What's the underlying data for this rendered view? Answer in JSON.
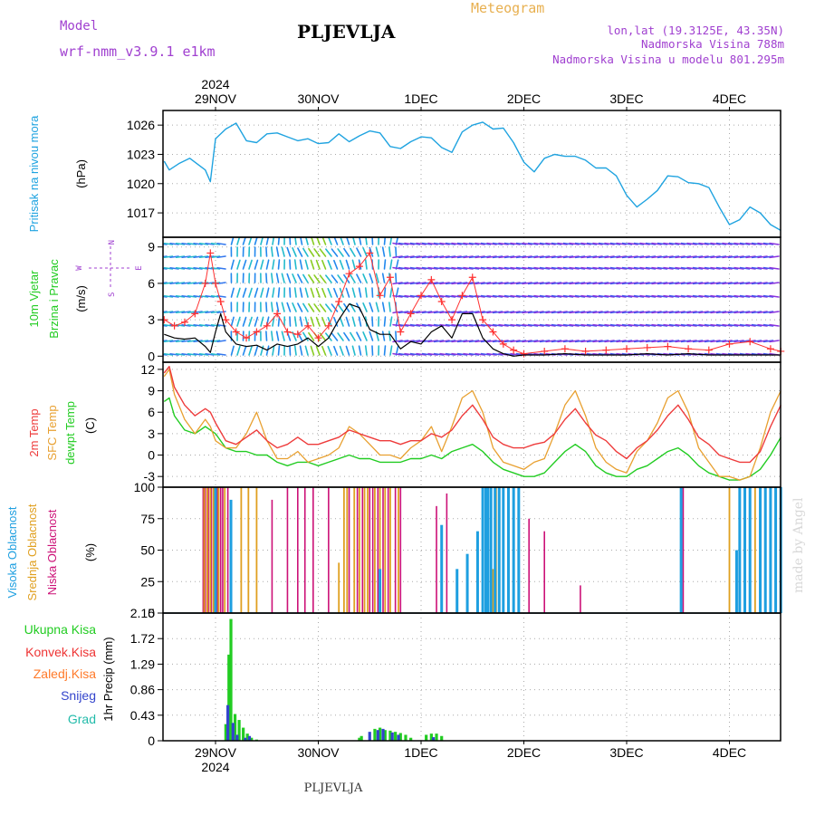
{
  "header": {
    "model_label": "Model",
    "model_name": "wrf-nmm_v3.9.1 e1km",
    "station": "PLJEVLJA",
    "product": "Meteogram",
    "coords": "lon,lat (19.3125E, 43.35N)",
    "elevation": "Nadmorska Visina 788m",
    "model_elevation": "Nadmorska Visina u modelu 801.295m",
    "year": "2024",
    "footer_station": "PLJEVLJA",
    "credit": "made by Angel"
  },
  "colors": {
    "pressure": "#1fa3e0",
    "wind_speed": "#000000",
    "wind_gust": "#ff3030",
    "t2m": "#ee3b3b",
    "tsfc": "#e8a030",
    "dewpt": "#22cc22",
    "cloud_high": "#1e9fe0",
    "cloud_mid": "#e0a020",
    "cloud_low": "#cc1177",
    "precip_total": "#22cc22",
    "precip_conv": "#ee3333",
    "precip_freezing": "#ff7a2a",
    "precip_snow": "#3344cc",
    "precip_graupel": "#22bbaa",
    "title_purple": "#a040d0",
    "title_orange": "#e8b050"
  },
  "chart_data": [
    {
      "type": "line",
      "panel": "pressure",
      "ylabel": "Pritisak na nivou mora",
      "unit": "(hPa)",
      "ylim": [
        1014.5,
        1027.5
      ],
      "yticks": [
        1017,
        1020,
        1023,
        1026
      ],
      "grid": true,
      "x_days": [
        "29NOV",
        "30NOV",
        "1DEC",
        "2DEC",
        "3DEC",
        "4DEC"
      ],
      "x": [
        -0.5,
        -0.45,
        -0.35,
        -0.25,
        -0.1,
        -0.05,
        0.0,
        0.1,
        0.2,
        0.3,
        0.4,
        0.5,
        0.6,
        0.7,
        0.8,
        0.9,
        1.0,
        1.1,
        1.2,
        1.3,
        1.4,
        1.5,
        1.6,
        1.7,
        1.8,
        1.9,
        2.0,
        2.1,
        2.2,
        2.3,
        2.4,
        2.5,
        2.6,
        2.7,
        2.8,
        2.9,
        3.0,
        3.1,
        3.2,
        3.3,
        3.4,
        3.5,
        3.6,
        3.7,
        3.8,
        3.9,
        4.0,
        4.1,
        4.2,
        4.3,
        4.4,
        4.5,
        4.6,
        4.7,
        4.8,
        4.9,
        5.0,
        5.1,
        5.2,
        5.3,
        5.4,
        5.5
      ],
      "values": [
        1022.3,
        1021.4,
        1022.1,
        1022.6,
        1021.4,
        1020.2,
        1024.6,
        1025.6,
        1026.2,
        1024.4,
        1024.2,
        1025.1,
        1025.2,
        1024.8,
        1024.4,
        1024.6,
        1024.1,
        1024.2,
        1025.1,
        1024.3,
        1024.9,
        1025.4,
        1025.2,
        1023.8,
        1023.6,
        1024.3,
        1024.8,
        1024.7,
        1023.7,
        1023.2,
        1025.3,
        1026.0,
        1026.3,
        1025.6,
        1025.7,
        1024.2,
        1022.2,
        1021.2,
        1022.6,
        1023.0,
        1022.8,
        1022.8,
        1022.4,
        1021.6,
        1021.6,
        1020.8,
        1018.8,
        1017.6,
        1018.4,
        1019.3,
        1020.8,
        1020.7,
        1020.1,
        1020.0,
        1019.6,
        1017.6,
        1015.8,
        1016.3,
        1017.6,
        1017.0,
        1015.8,
        1015.2
      ]
    },
    {
      "type": "line",
      "panel": "wind",
      "ylabel": "10m Vjetar",
      "ylabel2": "Brzina i Pravac",
      "unit": "(m/s)",
      "compass": {
        "n": "N",
        "w": "W",
        "e": "E",
        "s": "S"
      },
      "ylim": [
        -0.5,
        9.8
      ],
      "yticks": [
        0,
        3,
        6,
        9
      ],
      "grid": true,
      "x": [
        -0.5,
        -0.4,
        -0.3,
        -0.2,
        -0.1,
        -0.05,
        0.0,
        0.05,
        0.1,
        0.2,
        0.3,
        0.4,
        0.5,
        0.6,
        0.7,
        0.8,
        0.9,
        1.0,
        1.1,
        1.2,
        1.3,
        1.4,
        1.5,
        1.6,
        1.7,
        1.8,
        1.9,
        2.0,
        2.1,
        2.2,
        2.3,
        2.4,
        2.5,
        2.6,
        2.7,
        2.8,
        2.9,
        3.0,
        3.2,
        3.4,
        3.6,
        3.8,
        4.0,
        4.2,
        4.4,
        4.6,
        4.8,
        5.0,
        5.2,
        5.4,
        5.5
      ],
      "series": [
        {
          "name": "speed",
          "values": [
            1.8,
            1.5,
            1.4,
            1.5,
            0.8,
            0.3,
            2.0,
            3.5,
            2.0,
            1.0,
            0.8,
            0.9,
            0.5,
            1.0,
            0.8,
            1.0,
            1.5,
            0.8,
            1.5,
            3.0,
            4.3,
            4.0,
            2.2,
            1.8,
            1.8,
            0.6,
            1.2,
            1.0,
            2.0,
            2.5,
            1.5,
            3.5,
            3.5,
            1.5,
            0.6,
            0.2,
            0.0,
            0.1,
            0.1,
            0.2,
            0.1,
            0.1,
            0.1,
            0.2,
            0.1,
            0.2,
            0.1,
            0.1,
            0.1,
            0.1,
            0.1
          ]
        },
        {
          "name": "gust",
          "values": [
            3.0,
            2.5,
            2.8,
            3.5,
            6.0,
            8.5,
            6.0,
            4.5,
            3.0,
            2.0,
            1.5,
            2.0,
            2.5,
            3.5,
            2.0,
            1.8,
            2.5,
            1.5,
            2.5,
            4.5,
            6.8,
            7.4,
            8.5,
            5.0,
            6.5,
            2.0,
            3.5,
            5.0,
            6.3,
            4.5,
            3.0,
            5.0,
            6.5,
            3.0,
            2.0,
            1.0,
            0.5,
            0.2,
            0.4,
            0.6,
            0.4,
            0.5,
            0.6,
            0.7,
            0.8,
            0.6,
            0.5,
            1.0,
            1.2,
            0.6,
            0.4
          ]
        }
      ]
    },
    {
      "type": "line",
      "panel": "temperature",
      "ylabels": [
        "2m Temp",
        "SFC Temp",
        "dewpt Temp"
      ],
      "unit": "(C)",
      "ylim": [
        -4.5,
        13
      ],
      "yticks": [
        -3,
        0,
        3,
        6,
        9,
        12
      ],
      "grid": true,
      "x": [
        -0.5,
        -0.45,
        -0.4,
        -0.3,
        -0.2,
        -0.1,
        -0.05,
        0.0,
        0.1,
        0.2,
        0.3,
        0.4,
        0.5,
        0.6,
        0.7,
        0.8,
        0.9,
        1.0,
        1.1,
        1.2,
        1.3,
        1.4,
        1.5,
        1.6,
        1.7,
        1.8,
        1.9,
        2.0,
        2.1,
        2.2,
        2.3,
        2.4,
        2.5,
        2.6,
        2.7,
        2.8,
        2.9,
        3.0,
        3.1,
        3.2,
        3.3,
        3.4,
        3.5,
        3.6,
        3.7,
        3.8,
        3.9,
        4.0,
        4.1,
        4.2,
        4.3,
        4.4,
        4.5,
        4.6,
        4.7,
        4.8,
        4.9,
        5.0,
        5.1,
        5.2,
        5.3,
        5.4,
        5.5
      ],
      "series": [
        {
          "name": "2m Temp",
          "values": [
            11.5,
            12.4,
            9.5,
            7.0,
            5.5,
            6.5,
            6.0,
            4.5,
            2.0,
            1.5,
            2.5,
            3.5,
            2.0,
            1.0,
            1.5,
            2.5,
            1.5,
            1.5,
            2.0,
            2.5,
            3.5,
            3.0,
            2.5,
            2.0,
            2.0,
            1.5,
            2.0,
            2.0,
            3.0,
            2.5,
            3.5,
            5.5,
            7.0,
            5.0,
            2.5,
            1.5,
            1.0,
            1.0,
            1.5,
            1.8,
            3.0,
            5.0,
            6.5,
            4.5,
            2.8,
            2.0,
            0.5,
            -0.5,
            1.0,
            2.0,
            3.5,
            5.5,
            7.0,
            5.0,
            2.5,
            1.5,
            0.0,
            -0.5,
            -1.0,
            -1.0,
            0.5,
            4.0,
            7.0
          ]
        },
        {
          "name": "SFC Temp",
          "values": [
            11.0,
            12.0,
            8.5,
            5.0,
            3.0,
            5.0,
            4.0,
            2.0,
            1.0,
            1.0,
            3.0,
            6.0,
            2.0,
            -0.5,
            -0.5,
            0.5,
            -1.0,
            -0.5,
            0.0,
            1.0,
            4.0,
            3.0,
            1.5,
            0.0,
            0.0,
            -0.5,
            1.0,
            2.0,
            4.0,
            0.5,
            4.0,
            8.0,
            9.0,
            6.0,
            1.0,
            -1.0,
            -1.5,
            -2.0,
            -1.0,
            -0.5,
            3.0,
            7.0,
            9.0,
            5.5,
            1.0,
            -1.0,
            -2.0,
            -2.5,
            0.5,
            2.0,
            4.5,
            8.0,
            9.0,
            6.0,
            1.0,
            -1.0,
            -3.0,
            -3.0,
            -3.5,
            -3.0,
            1.0,
            6.0,
            9.0
          ]
        },
        {
          "name": "dewpt Temp",
          "values": [
            7.5,
            8.0,
            5.5,
            3.5,
            3.0,
            4.0,
            3.5,
            3.0,
            1.0,
            0.5,
            0.5,
            0.0,
            0.0,
            -1.0,
            -1.5,
            -1.0,
            -1.0,
            -1.5,
            -1.0,
            -0.5,
            0.0,
            -0.5,
            -0.5,
            -1.0,
            -1.0,
            -1.0,
            -0.5,
            -0.5,
            0.0,
            -0.5,
            0.5,
            1.0,
            1.5,
            0.5,
            -1.0,
            -2.0,
            -2.5,
            -3.0,
            -3.0,
            -2.5,
            -1.0,
            0.5,
            1.5,
            0.5,
            -1.5,
            -2.5,
            -3.0,
            -3.0,
            -2.0,
            -1.5,
            -0.5,
            0.5,
            1.0,
            0.0,
            -1.5,
            -2.5,
            -3.0,
            -3.5,
            -3.5,
            -3.0,
            -2.0,
            0.0,
            2.5
          ]
        }
      ]
    },
    {
      "type": "bar",
      "panel": "clouds",
      "ylabels": [
        "Visoka Oblacnost",
        "Srednja Oblacnost",
        "Niska Oblacnost"
      ],
      "unit": "(%)",
      "ylim": [
        0,
        100
      ],
      "yticks": [
        0,
        25,
        50,
        75,
        100
      ],
      "grid": true,
      "series": [
        {
          "name": "Niska Oblacnost",
          "x": [
            -0.12,
            -0.1,
            -0.07,
            -0.04,
            0.02,
            0.05,
            0.07,
            0.12,
            0.55,
            0.7,
            0.8,
            0.87,
            0.95,
            1.1,
            1.3,
            1.38,
            1.43,
            1.5,
            1.53,
            1.58,
            1.63,
            1.68,
            1.75,
            1.8,
            2.15,
            2.25,
            3.05,
            3.2,
            3.55,
            4.55,
            5.2,
            5.3,
            5.45
          ],
          "values": [
            100,
            100,
            100,
            100,
            100,
            100,
            100,
            100,
            90,
            100,
            100,
            100,
            100,
            100,
            100,
            100,
            100,
            100,
            100,
            100,
            100,
            100,
            100,
            100,
            85,
            95,
            75,
            65,
            22,
            100,
            100,
            100,
            100
          ]
        },
        {
          "name": "Srednja Oblacnost",
          "x": [
            -0.11,
            -0.08,
            -0.05,
            -0.02,
            0.03,
            0.09,
            0.25,
            0.32,
            0.4,
            1.2,
            1.25,
            1.28,
            1.35,
            1.4,
            1.45,
            1.48,
            1.55,
            1.6,
            1.65,
            1.7,
            1.78,
            2.7,
            2.73,
            5.0,
            5.2,
            5.25,
            5.35,
            5.4,
            5.5
          ],
          "values": [
            100,
            100,
            100,
            100,
            100,
            100,
            100,
            100,
            100,
            40,
            100,
            100,
            100,
            100,
            100,
            100,
            100,
            100,
            100,
            100,
            100,
            35,
            100,
            100,
            100,
            100,
            100,
            100,
            100
          ]
        },
        {
          "name": "Visoka Oblacnost",
          "x": [
            0.0,
            0.15,
            1.6,
            2.2,
            2.35,
            2.45,
            2.55,
            2.6,
            2.63,
            2.65,
            2.68,
            2.72,
            2.76,
            2.8,
            2.85,
            2.9,
            2.95,
            4.53,
            5.07,
            5.1,
            5.15,
            5.2,
            5.3,
            5.35,
            5.4,
            5.45,
            5.5
          ],
          "values": [
            100,
            90,
            35,
            70,
            35,
            47,
            65,
            100,
            100,
            100,
            100,
            100,
            100,
            100,
            100,
            100,
            100,
            100,
            50,
            100,
            100,
            100,
            100,
            100,
            100,
            100,
            100
          ]
        }
      ]
    },
    {
      "type": "bar",
      "panel": "precip",
      "ylabel": "1hr Precip (mm)",
      "legend": [
        "Ukupna Kisa",
        "Konvek.Kisa",
        "Zaledj.Kisa",
        "Snijeg",
        "Grad"
      ],
      "ylim": [
        0,
        2.15
      ],
      "yticks": [
        0,
        0.43,
        0.86,
        1.29,
        1.72,
        2.15
      ],
      "grid": true,
      "x_days": [
        "29NOV",
        "30NOV",
        "1DEC",
        "2DEC",
        "3DEC",
        "4DEC"
      ],
      "series": [
        {
          "name": "Ukupna Kisa",
          "x": [
            0.1,
            0.13,
            0.15,
            0.19,
            0.23,
            0.27,
            0.31,
            0.35,
            0.4,
            1.4,
            1.42,
            1.55,
            1.6,
            1.65,
            1.7,
            1.75,
            1.8,
            1.85,
            1.9,
            2.05,
            2.1,
            2.15,
            2.2
          ],
          "values": [
            0.28,
            1.45,
            2.05,
            0.45,
            0.35,
            0.22,
            0.12,
            0.05,
            0.02,
            0.05,
            0.08,
            0.2,
            0.22,
            0.18,
            0.17,
            0.15,
            0.13,
            0.1,
            0.05,
            0.1,
            0.12,
            0.12,
            0.08
          ]
        },
        {
          "name": "Snijeg",
          "x": [
            0.12,
            0.17,
            0.21,
            0.29,
            0.33,
            1.5,
            1.58,
            1.63,
            1.72,
            1.78,
            2.12
          ],
          "values": [
            0.6,
            0.3,
            0.1,
            0.05,
            0.08,
            0.15,
            0.18,
            0.2,
            0.14,
            0.1,
            0.06
          ]
        }
      ]
    }
  ]
}
